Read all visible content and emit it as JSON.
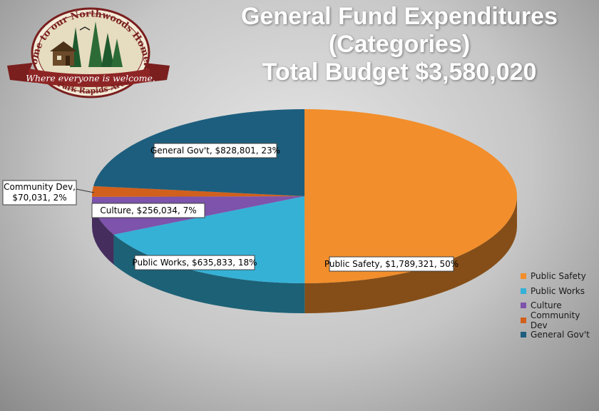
{
  "title": {
    "line1": "General Fund Expenditures",
    "line2": "(Categories)",
    "line3": "Total Budget $3,580,020"
  },
  "logo": {
    "top_text": "Come to our Northwoods Home...",
    "banner_text": "Where everyone is welcome.",
    "bottom_text": "Park Rapids Area"
  },
  "chart_data": {
    "type": "pie",
    "three_d": true,
    "categories": [
      "Public Safety",
      "Public Works",
      "Culture",
      "Community Dev",
      "General Gov't"
    ],
    "values": [
      1789321,
      635833,
      256034,
      70031,
      828801
    ],
    "percents": [
      50,
      18,
      7,
      2,
      23
    ],
    "data_labels": [
      [
        "Public Safety, $1,789,321, 50%"
      ],
      [
        "Public Works, $635,833, 18%"
      ],
      [
        "Culture, $256,034, 7%"
      ],
      [
        "Community Dev,",
        "$70,031, 2%"
      ],
      [
        "General Gov't, $828,801, 23%"
      ]
    ],
    "colors": [
      "#f28e2b",
      "#35b1d6",
      "#7d53ab",
      "#d1601c",
      "#1d5e7e"
    ],
    "legend_position": "right"
  }
}
